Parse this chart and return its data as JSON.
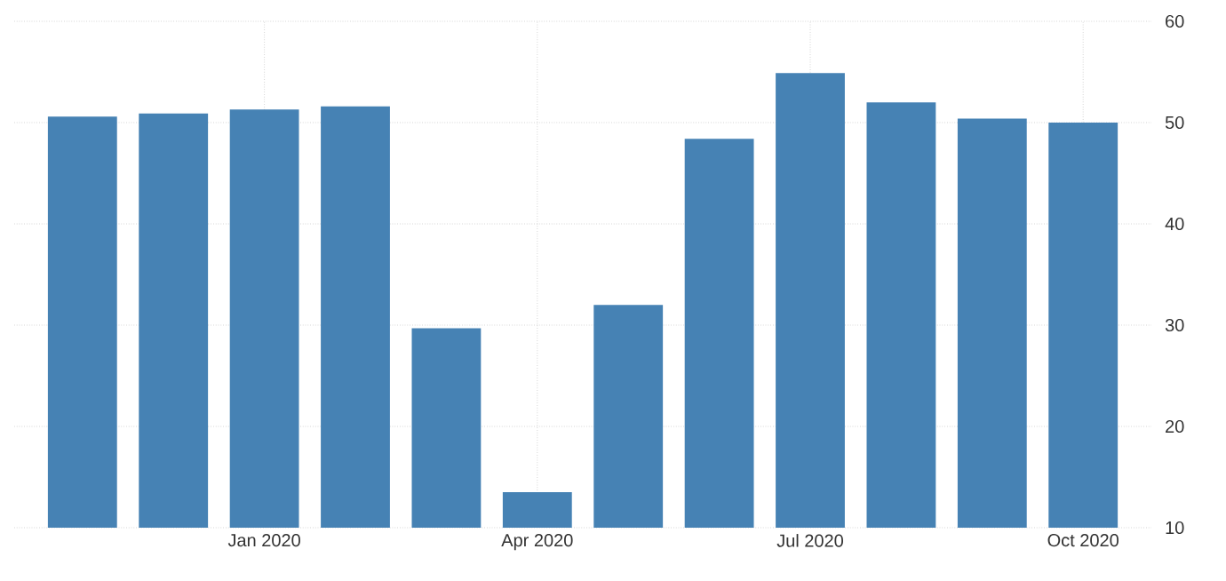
{
  "chart_data": {
    "type": "bar",
    "categories": [
      null,
      null,
      "Jan 2020",
      null,
      null,
      "Apr 2020",
      null,
      null,
      "Jul 2020",
      null,
      null,
      "Oct 2020"
    ],
    "values": [
      50.6,
      50.9,
      51.3,
      51.6,
      29.7,
      13.5,
      32.0,
      48.4,
      54.9,
      52.0,
      50.4,
      50.0
    ],
    "color": "#4682b4",
    "ylim": [
      10,
      60
    ],
    "yticks": [
      10,
      20,
      30,
      40,
      50,
      60
    ],
    "grid": true
  }
}
